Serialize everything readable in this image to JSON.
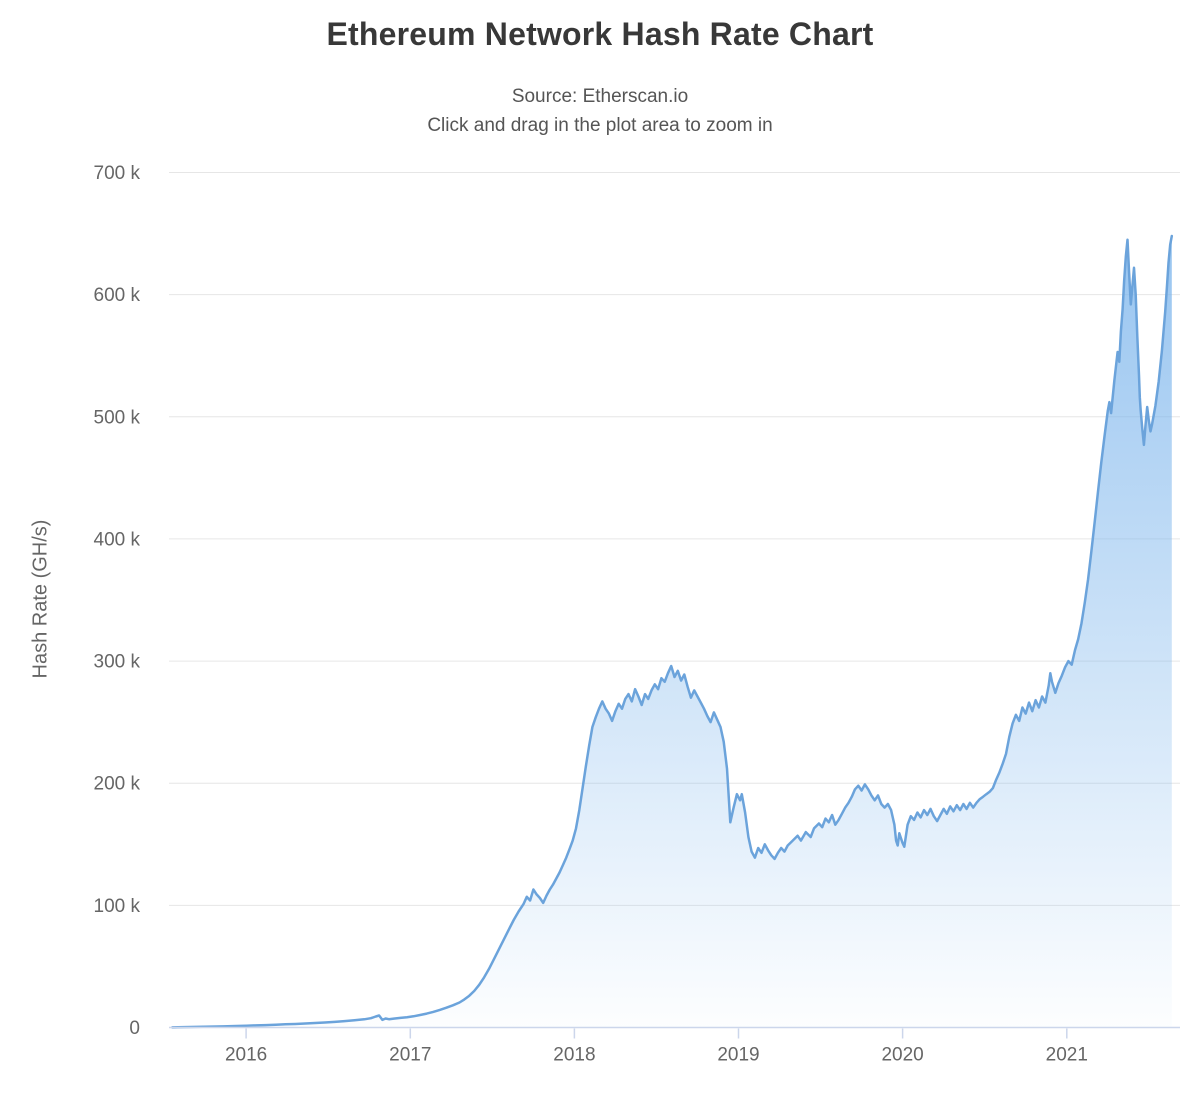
{
  "chart": {
    "title": "Ethereum Network Hash Rate Chart",
    "subtitle_source": "Source: Etherscan.io",
    "subtitle_hint": "Click and drag in the plot area to zoom in"
  },
  "colors": {
    "background": "#ffffff",
    "grid": "#e6e6e6",
    "axis": "#ccd6eb",
    "tick_label": "#666666",
    "title": "#383838",
    "subtitle": "#555555",
    "series_line": "#6ba3db",
    "area_top": "rgba(124,181,236,0.85)",
    "area_bottom": "rgba(124,181,236,0.02)"
  },
  "chart_data": {
    "type": "area",
    "title": "Ethereum Network Hash Rate Chart",
    "subtitle": [
      "Source: Etherscan.io",
      "Click and drag in the plot area to zoom in"
    ],
    "xlabel": "",
    "ylabel": "Hash Rate (GH/s)",
    "unit": "GH/s",
    "grid": true,
    "legend": "none",
    "xlim": [
      2015.53,
      2021.69
    ],
    "ylim": [
      0,
      700000
    ],
    "x_ticks": [
      {
        "value": 2016,
        "label": "2016"
      },
      {
        "value": 2017,
        "label": "2017"
      },
      {
        "value": 2018,
        "label": "2018"
      },
      {
        "value": 2019,
        "label": "2019"
      },
      {
        "value": 2020,
        "label": "2020"
      },
      {
        "value": 2021,
        "label": "2021"
      }
    ],
    "y_ticks": [
      {
        "value": 0,
        "label": "0"
      },
      {
        "value": 100000,
        "label": "100 k"
      },
      {
        "value": 200000,
        "label": "200 k"
      },
      {
        "value": 300000,
        "label": "300 k"
      },
      {
        "value": 400000,
        "label": "400 k"
      },
      {
        "value": 500000,
        "label": "500 k"
      },
      {
        "value": 600000,
        "label": "600 k"
      },
      {
        "value": 700000,
        "label": "700 k"
      }
    ],
    "series": [
      {
        "name": "Hash Rate",
        "x_unit": "year (decimal)",
        "points": [
          [
            2015.55,
            100
          ],
          [
            2015.62,
            300
          ],
          [
            2015.7,
            500
          ],
          [
            2015.78,
            700
          ],
          [
            2015.86,
            900
          ],
          [
            2015.94,
            1200
          ],
          [
            2016,
            1500
          ],
          [
            2016.06,
            1700
          ],
          [
            2016.12,
            2000
          ],
          [
            2016.18,
            2300
          ],
          [
            2016.24,
            2600
          ],
          [
            2016.3,
            2900
          ],
          [
            2016.36,
            3300
          ],
          [
            2016.42,
            3700
          ],
          [
            2016.48,
            4100
          ],
          [
            2016.54,
            4600
          ],
          [
            2016.6,
            5200
          ],
          [
            2016.66,
            5900
          ],
          [
            2016.72,
            6700
          ],
          [
            2016.76,
            7600
          ],
          [
            2016.79,
            9000
          ],
          [
            2016.81,
            9800
          ],
          [
            2016.83,
            6200
          ],
          [
            2016.85,
            7400
          ],
          [
            2016.87,
            6800
          ],
          [
            2016.9,
            7300
          ],
          [
            2016.94,
            7900
          ],
          [
            2016.98,
            8400
          ],
          [
            2017.02,
            9200
          ],
          [
            2017.06,
            10200
          ],
          [
            2017.1,
            11400
          ],
          [
            2017.14,
            12800
          ],
          [
            2017.18,
            14400
          ],
          [
            2017.22,
            16200
          ],
          [
            2017.26,
            18200
          ],
          [
            2017.3,
            20500
          ],
          [
            2017.33,
            23000
          ],
          [
            2017.36,
            26000
          ],
          [
            2017.39,
            30000
          ],
          [
            2017.42,
            35000
          ],
          [
            2017.45,
            41000
          ],
          [
            2017.48,
            48000
          ],
          [
            2017.51,
            56000
          ],
          [
            2017.54,
            64000
          ],
          [
            2017.57,
            72000
          ],
          [
            2017.6,
            80000
          ],
          [
            2017.63,
            88000
          ],
          [
            2017.66,
            95000
          ],
          [
            2017.69,
            101000
          ],
          [
            2017.71,
            107000
          ],
          [
            2017.73,
            104000
          ],
          [
            2017.75,
            113000
          ],
          [
            2017.77,
            109000
          ],
          [
            2017.79,
            106000
          ],
          [
            2017.81,
            102000
          ],
          [
            2017.83,
            108000
          ],
          [
            2017.85,
            113000
          ],
          [
            2017.87,
            117000
          ],
          [
            2017.89,
            122000
          ],
          [
            2017.91,
            127000
          ],
          [
            2017.93,
            133000
          ],
          [
            2017.95,
            139000
          ],
          [
            2017.97,
            146000
          ],
          [
            2017.99,
            153000
          ],
          [
            2018.01,
            163000
          ],
          [
            2018.03,
            178000
          ],
          [
            2018.05,
            196000
          ],
          [
            2018.07,
            214000
          ],
          [
            2018.09,
            231000
          ],
          [
            2018.11,
            246000
          ],
          [
            2018.13,
            254000
          ],
          [
            2018.15,
            261000
          ],
          [
            2018.17,
            267000
          ],
          [
            2018.19,
            261000
          ],
          [
            2018.21,
            257000
          ],
          [
            2018.23,
            251000
          ],
          [
            2018.25,
            259000
          ],
          [
            2018.27,
            265000
          ],
          [
            2018.29,
            261000
          ],
          [
            2018.31,
            269000
          ],
          [
            2018.33,
            273000
          ],
          [
            2018.35,
            267000
          ],
          [
            2018.37,
            277000
          ],
          [
            2018.39,
            271000
          ],
          [
            2018.41,
            264000
          ],
          [
            2018.43,
            273000
          ],
          [
            2018.45,
            269000
          ],
          [
            2018.47,
            276000
          ],
          [
            2018.49,
            281000
          ],
          [
            2018.51,
            277000
          ],
          [
            2018.53,
            286000
          ],
          [
            2018.55,
            283000
          ],
          [
            2018.57,
            290000
          ],
          [
            2018.59,
            296000
          ],
          [
            2018.61,
            287000
          ],
          [
            2018.63,
            292000
          ],
          [
            2018.65,
            284000
          ],
          [
            2018.67,
            289000
          ],
          [
            2018.69,
            279000
          ],
          [
            2018.71,
            270000
          ],
          [
            2018.73,
            276000
          ],
          [
            2018.75,
            271000
          ],
          [
            2018.77,
            266000
          ],
          [
            2018.79,
            261000
          ],
          [
            2018.81,
            255000
          ],
          [
            2018.83,
            250000
          ],
          [
            2018.85,
            258000
          ],
          [
            2018.87,
            252000
          ],
          [
            2018.89,
            246000
          ],
          [
            2018.91,
            234000
          ],
          [
            2018.93,
            212000
          ],
          [
            2018.95,
            168000
          ],
          [
            2018.97,
            180000
          ],
          [
            2018.99,
            191000
          ],
          [
            2019.01,
            186000
          ],
          [
            2019.02,
            191000
          ],
          [
            2019.04,
            176000
          ],
          [
            2019.06,
            156000
          ],
          [
            2019.08,
            144000
          ],
          [
            2019.1,
            139000
          ],
          [
            2019.12,
            147000
          ],
          [
            2019.14,
            143000
          ],
          [
            2019.16,
            150000
          ],
          [
            2019.18,
            145000
          ],
          [
            2019.2,
            141000
          ],
          [
            2019.22,
            138000
          ],
          [
            2019.24,
            143000
          ],
          [
            2019.26,
            147000
          ],
          [
            2019.28,
            144000
          ],
          [
            2019.3,
            149000
          ],
          [
            2019.33,
            153000
          ],
          [
            2019.36,
            157000
          ],
          [
            2019.38,
            153000
          ],
          [
            2019.41,
            160000
          ],
          [
            2019.44,
            156000
          ],
          [
            2019.46,
            163000
          ],
          [
            2019.49,
            167000
          ],
          [
            2019.51,
            164000
          ],
          [
            2019.53,
            171000
          ],
          [
            2019.55,
            168000
          ],
          [
            2019.57,
            174000
          ],
          [
            2019.59,
            166000
          ],
          [
            2019.61,
            170000
          ],
          [
            2019.63,
            175000
          ],
          [
            2019.65,
            180000
          ],
          [
            2019.67,
            184000
          ],
          [
            2019.69,
            189000
          ],
          [
            2019.71,
            195000
          ],
          [
            2019.73,
            198000
          ],
          [
            2019.75,
            194000
          ],
          [
            2019.77,
            199000
          ],
          [
            2019.79,
            195000
          ],
          [
            2019.81,
            190000
          ],
          [
            2019.83,
            186000
          ],
          [
            2019.85,
            190000
          ],
          [
            2019.87,
            183000
          ],
          [
            2019.89,
            180000
          ],
          [
            2019.91,
            183000
          ],
          [
            2019.93,
            178000
          ],
          [
            2019.95,
            166000
          ],
          [
            2019.96,
            153000
          ],
          [
            2019.97,
            149000
          ],
          [
            2019.98,
            159000
          ],
          [
            2020,
            151000
          ],
          [
            2020.01,
            148000
          ],
          [
            2020.03,
            166000
          ],
          [
            2020.05,
            173000
          ],
          [
            2020.07,
            170000
          ],
          [
            2020.09,
            176000
          ],
          [
            2020.11,
            172000
          ],
          [
            2020.13,
            178000
          ],
          [
            2020.15,
            174000
          ],
          [
            2020.17,
            179000
          ],
          [
            2020.19,
            173000
          ],
          [
            2020.21,
            169000
          ],
          [
            2020.23,
            174000
          ],
          [
            2020.25,
            179000
          ],
          [
            2020.27,
            175000
          ],
          [
            2020.29,
            181000
          ],
          [
            2020.31,
            177000
          ],
          [
            2020.33,
            182000
          ],
          [
            2020.35,
            178000
          ],
          [
            2020.37,
            183000
          ],
          [
            2020.39,
            179000
          ],
          [
            2020.41,
            184000
          ],
          [
            2020.43,
            180000
          ],
          [
            2020.45,
            184000
          ],
          [
            2020.47,
            187000
          ],
          [
            2020.49,
            189000
          ],
          [
            2020.51,
            191000
          ],
          [
            2020.53,
            193000
          ],
          [
            2020.55,
            196000
          ],
          [
            2020.57,
            203000
          ],
          [
            2020.59,
            209000
          ],
          [
            2020.61,
            216000
          ],
          [
            2020.63,
            224000
          ],
          [
            2020.65,
            238000
          ],
          [
            2020.67,
            249000
          ],
          [
            2020.69,
            256000
          ],
          [
            2020.71,
            251000
          ],
          [
            2020.73,
            262000
          ],
          [
            2020.75,
            257000
          ],
          [
            2020.77,
            266000
          ],
          [
            2020.79,
            259000
          ],
          [
            2020.81,
            268000
          ],
          [
            2020.83,
            262000
          ],
          [
            2020.85,
            271000
          ],
          [
            2020.87,
            266000
          ],
          [
            2020.89,
            280000
          ],
          [
            2020.9,
            290000
          ],
          [
            2020.91,
            283000
          ],
          [
            2020.93,
            274000
          ],
          [
            2020.95,
            282000
          ],
          [
            2020.97,
            288000
          ],
          [
            2020.99,
            295000
          ],
          [
            2021.01,
            300000
          ],
          [
            2021.03,
            297000
          ],
          [
            2021.05,
            309000
          ],
          [
            2021.07,
            318000
          ],
          [
            2021.09,
            331000
          ],
          [
            2021.11,
            348000
          ],
          [
            2021.13,
            367000
          ],
          [
            2021.15,
            390000
          ],
          [
            2021.17,
            414000
          ],
          [
            2021.19,
            438000
          ],
          [
            2021.21,
            462000
          ],
          [
            2021.23,
            484000
          ],
          [
            2021.25,
            505000
          ],
          [
            2021.26,
            512000
          ],
          [
            2021.27,
            503000
          ],
          [
            2021.29,
            530000
          ],
          [
            2021.31,
            553000
          ],
          [
            2021.32,
            545000
          ],
          [
            2021.33,
            570000
          ],
          [
            2021.34,
            588000
          ],
          [
            2021.35,
            612000
          ],
          [
            2021.36,
            631000
          ],
          [
            2021.37,
            645000
          ],
          [
            2021.38,
            618000
          ],
          [
            2021.39,
            592000
          ],
          [
            2021.4,
            607000
          ],
          [
            2021.41,
            622000
          ],
          [
            2021.42,
            600000
          ],
          [
            2021.43,
            566000
          ],
          [
            2021.44,
            534000
          ],
          [
            2021.445,
            516000
          ],
          [
            2021.45,
            506000
          ],
          [
            2021.46,
            490000
          ],
          [
            2021.47,
            477000
          ],
          [
            2021.48,
            493000
          ],
          [
            2021.49,
            508000
          ],
          [
            2021.5,
            497000
          ],
          [
            2021.51,
            488000
          ],
          [
            2021.52,
            494000
          ],
          [
            2021.54,
            509000
          ],
          [
            2021.56,
            529000
          ],
          [
            2021.58,
            554000
          ],
          [
            2021.6,
            586000
          ],
          [
            2021.61,
            606000
          ],
          [
            2021.62,
            626000
          ],
          [
            2021.63,
            641000
          ],
          [
            2021.64,
            648000
          ]
        ]
      }
    ]
  }
}
